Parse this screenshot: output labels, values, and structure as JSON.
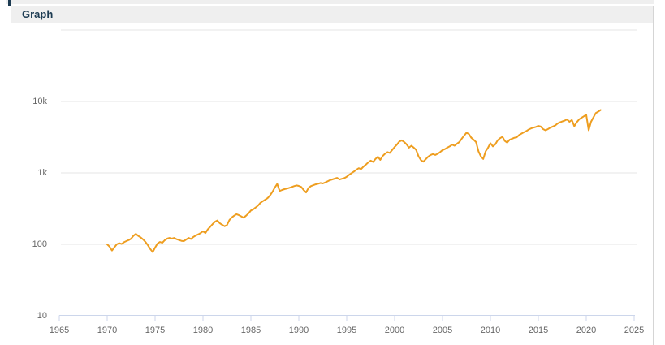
{
  "header": {
    "title": "Graph"
  },
  "colors": {
    "accent_line": "#ee9e20",
    "header_bg": "#efefef",
    "header_text": "#1c3b52",
    "gridline": "#e6e6e6",
    "axis": "#ccd6eb",
    "tick_text": "#666666",
    "panel_border": "#d8d8d8"
  },
  "chart_data": {
    "type": "line",
    "title": "",
    "xlabel": "",
    "ylabel": "",
    "grid": true,
    "legend": "none",
    "x_axis": {
      "range": [
        1965,
        2025
      ],
      "ticks": [
        1965,
        1970,
        1975,
        1980,
        1985,
        1990,
        1995,
        2000,
        2005,
        2010,
        2015,
        2020,
        2025
      ]
    },
    "y_axis": {
      "scale": "log",
      "range": [
        10,
        100000
      ],
      "ticks": [
        {
          "label": "",
          "value": 100000
        },
        {
          "label": "10k",
          "value": 10000
        },
        {
          "label": "1k",
          "value": 1000
        },
        {
          "label": "100",
          "value": 100
        },
        {
          "label": "10",
          "value": 10
        }
      ]
    },
    "series": [
      {
        "name": "series-1",
        "color": "#ee9e20",
        "x_start": 1970,
        "x_step": 0.25,
        "values": [
          100,
          93,
          82,
          91,
          100,
          104,
          101,
          107,
          111,
          115,
          120,
          132,
          140,
          131,
          125,
          117,
          108,
          97,
          86,
          78,
          90,
          102,
          108,
          105,
          114,
          120,
          123,
          120,
          123,
          118,
          115,
          112,
          111,
          117,
          123,
          119,
          127,
          133,
          138,
          144,
          152,
          144,
          162,
          176,
          192,
          207,
          215,
          198,
          188,
          179,
          186,
          218,
          238,
          252,
          264,
          256,
          246,
          236,
          252,
          272,
          298,
          310,
          328,
          350,
          382,
          402,
          422,
          445,
          485,
          545,
          625,
          700,
          560,
          578,
          592,
          604,
          618,
          634,
          652,
          668,
          658,
          636,
          578,
          532,
          612,
          652,
          672,
          692,
          704,
          722,
          712,
          734,
          762,
          792,
          812,
          832,
          852,
          808,
          828,
          846,
          884,
          942,
          992,
          1045,
          1105,
          1165,
          1130,
          1225,
          1305,
          1405,
          1485,
          1425,
          1565,
          1685,
          1525,
          1725,
          1855,
          1955,
          1905,
          2105,
          2305,
          2505,
          2755,
          2855,
          2705,
          2505,
          2255,
          2405,
          2255,
          2105,
          1705,
          1505,
          1435,
          1555,
          1685,
          1785,
          1835,
          1785,
          1855,
          1955,
          2085,
          2155,
          2255,
          2355,
          2485,
          2405,
          2555,
          2705,
          3005,
          3305,
          3655,
          3505,
          3105,
          2905,
          2705,
          2005,
          1705,
          1565,
          2005,
          2255,
          2605,
          2355,
          2505,
          2855,
          3055,
          3205,
          2805,
          2655,
          2905,
          3005,
          3105,
          3155,
          3405,
          3555,
          3705,
          3855,
          4055,
          4205,
          4305,
          4405,
          4555,
          4455,
          4105,
          3955,
          4105,
          4305,
          4455,
          4605,
          4905,
          5105,
          5255,
          5405,
          5605,
          5205,
          5505,
          4505,
          5105,
          5605,
          5905,
          6205,
          6505,
          3955,
          5205,
          6005,
          6905,
          7205,
          7605
        ]
      }
    ]
  }
}
